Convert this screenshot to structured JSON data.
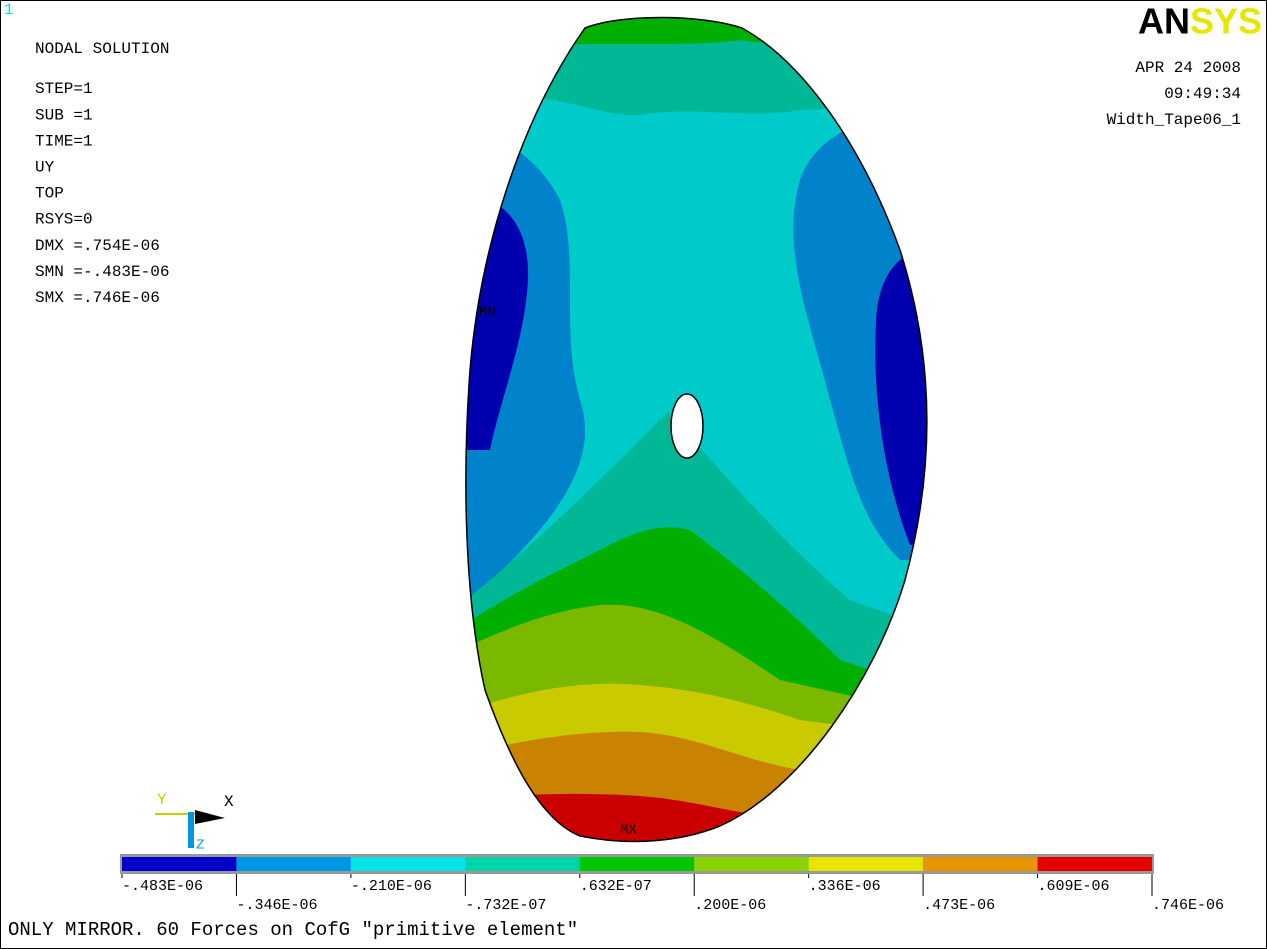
{
  "window_number": "1",
  "logo": [
    "AN",
    "SYS"
  ],
  "header": {
    "title": "NODAL SOLUTION",
    "lines": [
      "STEP=1",
      "SUB =1",
      "TIME=1",
      "UY",
      "TOP",
      "RSYS=0",
      "DMX =.754E-06",
      "SMN =-.483E-06",
      "SMX =.746E-06"
    ]
  },
  "info": [
    "APR 24 2008",
    "09:49:34",
    "Width_Tape06_1"
  ],
  "markers": {
    "min": "MN",
    "max": "MX"
  },
  "triad": {
    "y": "Y",
    "x": "X",
    "z": "Z"
  },
  "legend": {
    "colors": [
      "#0000c8",
      "#0096e6",
      "#00e6e6",
      "#00d2aa",
      "#00c800",
      "#8cd200",
      "#e6e600",
      "#e69600",
      "#e60000"
    ],
    "labels": [
      "-.483E-06",
      "-.346E-06",
      "-.210E-06",
      "-.732E-07",
      ".632E-07",
      ".200E-06",
      ".336E-06",
      ".473E-06",
      ".609E-06",
      ".746E-06"
    ]
  },
  "footer": "ONLY MIRROR. 60 Forces on CofG \"primitive element\""
}
